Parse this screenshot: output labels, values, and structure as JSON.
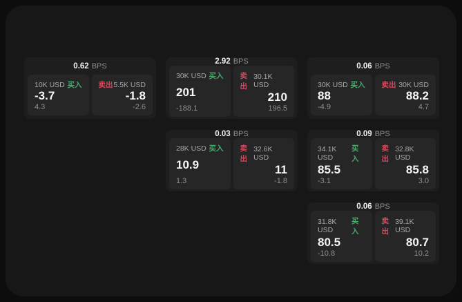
{
  "theme": {
    "buy_color": "#47ab6c",
    "sell_color": "#d14b5f",
    "page_background": "#0d0d0d",
    "surface_background": "#171717",
    "card_background": "#1e1e1e",
    "panel_background": "#262626"
  },
  "labels": {
    "buy": "买入",
    "sell": "卖出",
    "bps_unit": "BPS"
  },
  "cards": [
    {
      "spread": "0.62",
      "buy": {
        "amount": "10K USD",
        "price": "-3.7",
        "delta": "4.3"
      },
      "sell": {
        "amount": "5.5K USD",
        "price": "-1.8",
        "delta": "-2.6"
      }
    },
    {
      "spread": "2.92",
      "buy": {
        "amount": "30K USD",
        "price": "201",
        "delta": "-188.1"
      },
      "sell": {
        "amount": "30.1K USD",
        "price": "210",
        "delta": "196.5"
      }
    },
    {
      "spread": "0.06",
      "buy": {
        "amount": "30K USD",
        "price": "88",
        "delta": "-4.9"
      },
      "sell": {
        "amount": "30K USD",
        "price": "88.2",
        "delta": "4.7"
      }
    },
    {
      "spread": "0.03",
      "buy": {
        "amount": "28K USD",
        "price": "10.9",
        "delta": "1.3"
      },
      "sell": {
        "amount": "32.6K USD",
        "price": "11",
        "delta": "-1.8"
      }
    },
    {
      "spread": "0.09",
      "buy": {
        "amount": "34.1K USD",
        "price": "85.5",
        "delta": "-3.1"
      },
      "sell": {
        "amount": "32.8K USD",
        "price": "85.8",
        "delta": "3.0"
      }
    },
    {
      "spread": "0.06",
      "buy": {
        "amount": "31.8K USD",
        "price": "80.5",
        "delta": "-10.8"
      },
      "sell": {
        "amount": "39.1K USD",
        "price": "80.7",
        "delta": "10.2"
      }
    }
  ]
}
